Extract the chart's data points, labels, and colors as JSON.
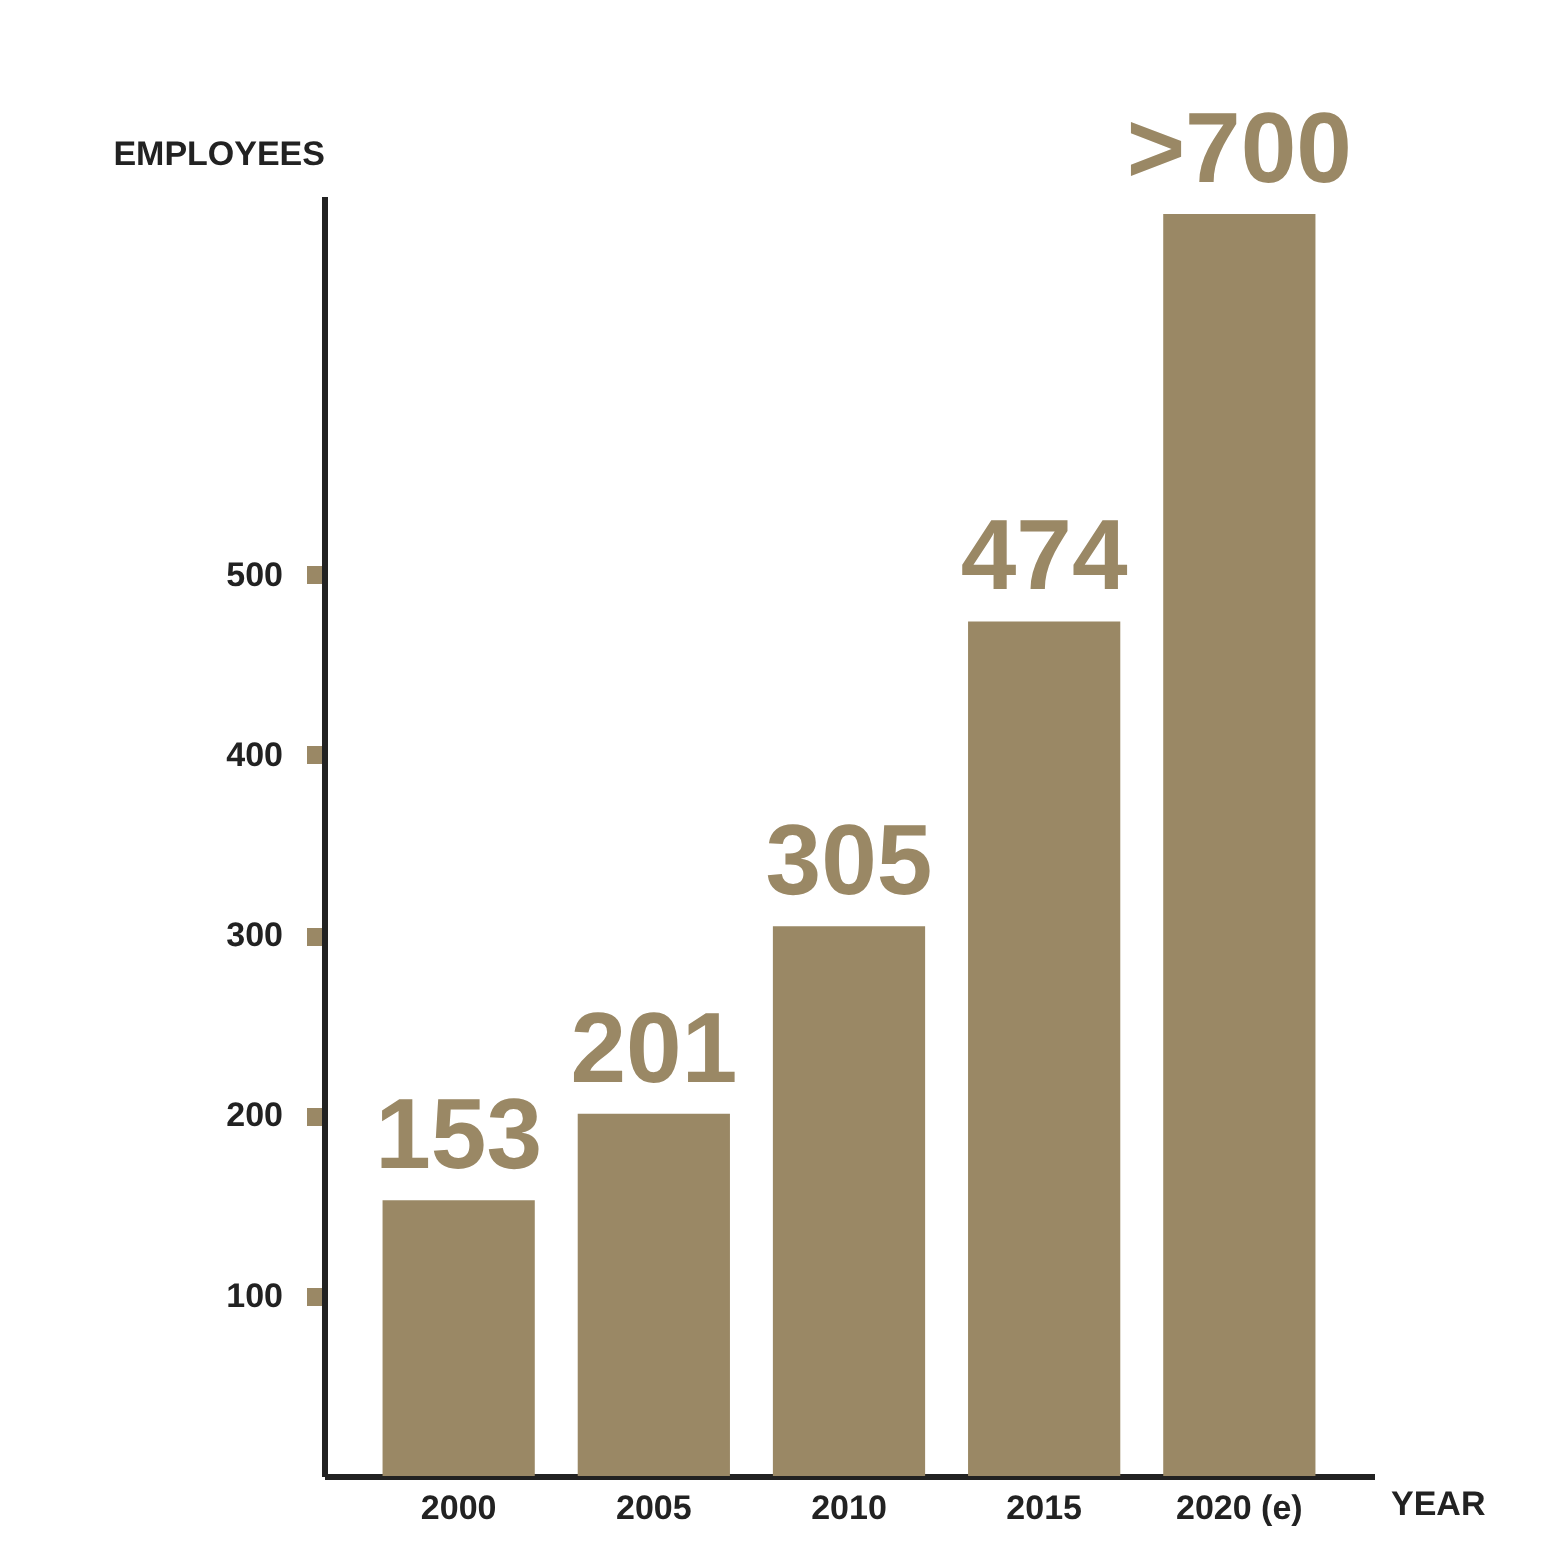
{
  "chart_data": {
    "type": "bar",
    "categories": [
      "2000",
      "2005",
      "2010",
      "2015",
      "2020 (e)"
    ],
    "values": [
      153,
      201,
      305,
      474,
      700
    ],
    "value_labels": [
      "153",
      "201",
      "305",
      "474",
      ">700"
    ],
    "color": "#9a8865",
    "xlabel": "YEAR",
    "ylabel": "EMPLOYEES",
    "ylim": [
      0,
      710
    ],
    "yticks": [
      100,
      200,
      300,
      400,
      500
    ],
    "grid": false
  }
}
